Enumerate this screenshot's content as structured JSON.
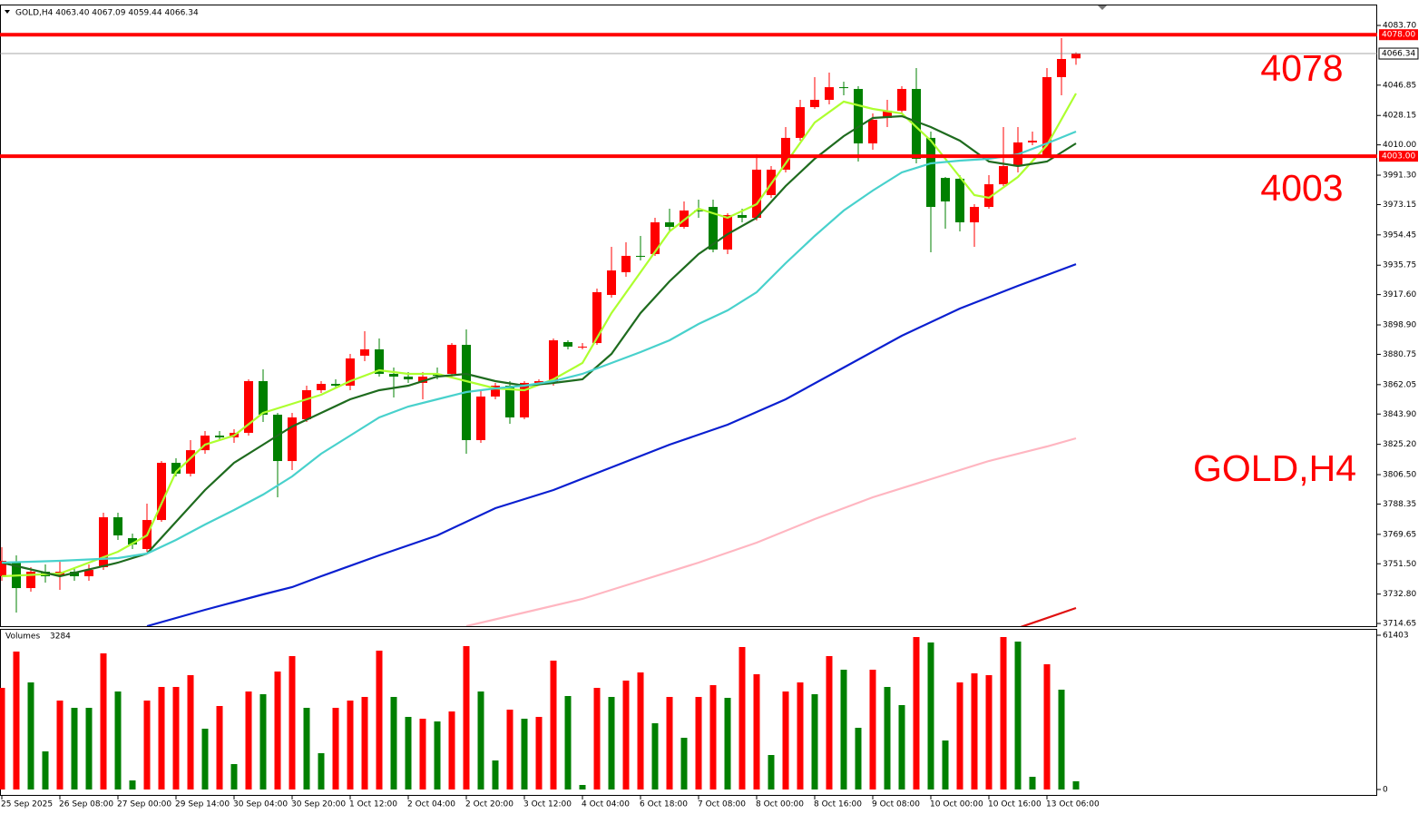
{
  "chart_data": {
    "type": "candlestick",
    "header": "GOLD,H4  4063.40 4067.09 4059.44 4066.34",
    "categories": [
      "25 Sep 2025",
      null,
      null,
      null,
      "26 Sep 08:00",
      null,
      null,
      null,
      "27 Sep 00:00",
      null,
      null,
      null,
      "29 Sep 14:00",
      null,
      null,
      null,
      "30 Sep 04:00",
      null,
      null,
      null,
      "30 Sep 20:00",
      null,
      null,
      null,
      "1 Oct 12:00",
      null,
      null,
      null,
      "2 Oct 04:00",
      null,
      null,
      null,
      "2 Oct 20:00",
      null,
      null,
      null,
      "3 Oct 12:00",
      null,
      null,
      null,
      "4 Oct 04:00",
      null,
      null,
      null,
      "6 Oct 18:00",
      null,
      null,
      null,
      "7 Oct 08:00",
      null,
      null,
      null,
      "8 Oct 00:00",
      null,
      null,
      null,
      "8 Oct 16:00",
      null,
      null,
      null,
      "9 Oct 08:00",
      null,
      null,
      null,
      "10 Oct 00:00",
      null,
      null,
      null,
      "10 Oct 16:00",
      null,
      null,
      null,
      "13 Oct 06:00",
      null,
      null
    ],
    "open": [
      3743.8,
      3752.2,
      3736.5,
      3746.6,
      3743.8,
      3746.6,
      3743.8,
      3749.4,
      3780.2,
      3767.3,
      3760.6,
      3778.5,
      3813.8,
      3807.1,
      3821.6,
      3830.6,
      3829.5,
      3832.3,
      3864.2,
      3843.5,
      3814.9,
      3840.7,
      3858.6,
      3862.5,
      3861.4,
      3879.9,
      3883.8,
      3868.7,
      3867.0,
      3863.1,
      3868.7,
      3868.7,
      3886.6,
      3827.8,
      3854.7,
      3861.4,
      3841.8,
      3863.1,
      3863.1,
      3888.3,
      3885.5,
      3887.7,
      3917.4,
      3931.4,
      3941.5,
      3942.6,
      3962.2,
      3959.4,
      3969.5,
      3971.7,
      3945.4,
      3966.7,
      3965.0,
      3979.0,
      3994.7,
      4014.3,
      4033.3,
      4037.8,
      4045.6,
      4044.5,
      4010.9,
      4026.6,
      4031.1,
      4044.5,
      4014.3,
      3989.6,
      3989.1,
      3962.2,
      3971.7,
      3985.7,
      3996.9,
      4011.5,
      4003.1,
      4051.8,
      4063.4
    ],
    "high": [
      3761.7,
      3756.7,
      3749.4,
      3751.1,
      3753.3,
      3749.4,
      3751.1,
      3783.0,
      3783.0,
      3770.1,
      3788.6,
      3814.9,
      3816.6,
      3827.8,
      3833.4,
      3833.4,
      3834.5,
      3865.3,
      3871.5,
      3844.6,
      3844.6,
      3861.4,
      3864.2,
      3865.3,
      3881.0,
      3895.0,
      3890.5,
      3872.6,
      3869.8,
      3869.8,
      3872.6,
      3887.7,
      3896.1,
      3858.6,
      3863.1,
      3864.2,
      3864.2,
      3865.3,
      3890.5,
      3889.4,
      3887.7,
      3921.3,
      3947.1,
      3949.9,
      3953.8,
      3965.0,
      3970.6,
      3975.1,
      3976.2,
      3976.2,
      3967.8,
      3970.6,
      4004.2,
      3996.9,
      4021.0,
      4037.8,
      4051.8,
      4054.6,
      4049.0,
      4046.2,
      4029.4,
      4037.8,
      4046.2,
      4057.4,
      4018.2,
      3990.2,
      3991.3,
      3973.4,
      3991.3,
      4021.0,
      4021.0,
      4018.2,
      4057.4,
      4075.9,
      4067.09
    ],
    "low": [
      3741.0,
      3721.4,
      3734.3,
      3739.9,
      3735.4,
      3741.0,
      3741.0,
      3747.7,
      3766.2,
      3760.6,
      3758.9,
      3777.4,
      3805.4,
      3805.4,
      3819.4,
      3827.8,
      3826.1,
      3830.6,
      3839.0,
      3792.5,
      3809.3,
      3839.0,
      3856.9,
      3859.7,
      3858.6,
      3876.5,
      3867.0,
      3854.1,
      3863.1,
      3853.0,
      3865.3,
      3867.0,
      3819.4,
      3826.1,
      3853.0,
      3837.9,
      3840.7,
      3861.4,
      3861.4,
      3883.8,
      3883.8,
      3886.6,
      3915.7,
      3928.6,
      3938.7,
      3941.5,
      3956.6,
      3958.3,
      3965.0,
      3943.7,
      3942.6,
      3962.2,
      3963.3,
      3977.3,
      3993.0,
      4012.6,
      4032.2,
      4035.0,
      4040.6,
      3999.7,
      4007.0,
      4021.0,
      4029.4,
      3998.6,
      3943.7,
      3958.3,
      3956.6,
      3947.1,
      3970.6,
      3984.6,
      3993.0,
      4009.8,
      4002.0,
      4040.6,
      4059.44
    ],
    "close": [
      3753.3,
      3736.5,
      3746.6,
      3743.8,
      3746.6,
      3743.8,
      3747.7,
      3780.2,
      3769.0,
      3763.4,
      3778.5,
      3813.8,
      3807.1,
      3821.6,
      3830.6,
      3829.5,
      3832.3,
      3864.2,
      3843.5,
      3814.9,
      3841.8,
      3858.6,
      3862.5,
      3861.4,
      3878.2,
      3883.8,
      3868.7,
      3867.0,
      3865.3,
      3867.0,
      3867.5,
      3886.6,
      3827.8,
      3854.7,
      3861.4,
      3841.8,
      3863.1,
      3864.2,
      3889.4,
      3885.5,
      3885.5,
      3919.1,
      3932.5,
      3941.5,
      3941.0,
      3962.2,
      3959.4,
      3969.5,
      3969.0,
      3945.4,
      3966.7,
      3965.0,
      3994.7,
      3994.7,
      4014.3,
      4033.3,
      4037.8,
      4045.6,
      4045.1,
      4010.9,
      4025.5,
      4031.1,
      4044.5,
      4001.4,
      3971.7,
      3975.1,
      3962.2,
      3971.7,
      3985.7,
      3996.9,
      4011.5,
      4012.6,
      4051.8,
      4063.0,
      4066.34
    ],
    "up_color": "#ff0000",
    "down_color": "#008000",
    "ylim": [
      3713,
      4096.6
    ],
    "yticks": [
      {
        "value": 4083.7,
        "label": "4083.70"
      },
      4046.85,
      4028.15,
      {
        "value": 4010,
        "label": "4010.00"
      },
      {
        "value": 3991.3,
        "label": "3991.30"
      },
      3973.15,
      3954.45,
      3935.75,
      {
        "value": 3917.6,
        "label": "3917.60"
      },
      {
        "value": 3898.9,
        "label": "3898.90"
      },
      3880.75,
      3862.05,
      {
        "value": 3843.9,
        "label": "3843.90"
      },
      {
        "value": 3825.2,
        "label": "3825.20"
      },
      {
        "value": 3806.5,
        "label": "3806.50"
      },
      3788.35,
      3769.65,
      {
        "value": 3751.5,
        "label": "3751.50"
      },
      {
        "value": 3732.8,
        "label": "3732.80"
      },
      3714.65
    ],
    "hlines": [
      {
        "value": 4078,
        "label": "4078.00"
      },
      {
        "value": 4003,
        "label": "4003.00"
      }
    ],
    "hline_color": "#ff0000",
    "moving_averages": [
      {
        "color": "#adff2f",
        "x": [
          0,
          4,
          8,
          10,
          12,
          14,
          16,
          18,
          20,
          22,
          24,
          26,
          28,
          30,
          32,
          34,
          36,
          38,
          40,
          42,
          44,
          46,
          48,
          50,
          52,
          54,
          56,
          58,
          60,
          62,
          64,
          66,
          67,
          68,
          70,
          72,
          74
        ],
        "values": [
          3743.8,
          3745.5,
          3758.9,
          3769.0,
          3808.2,
          3825.0,
          3830.6,
          3844.6,
          3850.2,
          3855.8,
          3864.2,
          3870.9,
          3868.7,
          3868.7,
          3864.2,
          3859.7,
          3858.6,
          3865.3,
          3875.4,
          3906.2,
          3931.4,
          3956.6,
          3970.6,
          3965.0,
          3973.4,
          3998.6,
          4023.8,
          4036.7,
          4032.2,
          4029.4,
          4012.6,
          3990.2,
          3979.0,
          3977.3,
          3990.2,
          4009.8,
          4041.7
        ]
      },
      {
        "color": "#1e6b1e",
        "x": [
          0,
          4,
          8,
          10,
          12,
          14,
          16,
          18,
          20,
          22,
          24,
          26,
          28,
          30,
          32,
          34,
          36,
          38,
          40,
          42,
          44,
          46,
          48,
          50,
          52,
          54,
          56,
          58,
          60,
          62,
          64,
          66,
          68,
          70,
          72,
          74
        ],
        "values": [
          3752.2,
          3743.8,
          3752.2,
          3757.8,
          3777.4,
          3797.0,
          3813.8,
          3825.0,
          3836.2,
          3844.6,
          3853.0,
          3858.6,
          3861.4,
          3867.0,
          3868.7,
          3864.2,
          3861.4,
          3863.1,
          3865.3,
          3881.0,
          3906.2,
          3925.8,
          3942.6,
          3954.9,
          3965.0,
          3984.6,
          4001.4,
          4015.4,
          4026.6,
          4027.7,
          4021.0,
          4012.6,
          3999.7,
          3996.9,
          3999.7,
          4010.9
        ]
      },
      {
        "color": "#48d1cc",
        "x": [
          0,
          4,
          8,
          10,
          12,
          14,
          16,
          18,
          20,
          22,
          24,
          26,
          28,
          30,
          32,
          34,
          36,
          38,
          40,
          42,
          44,
          46,
          48,
          50,
          52,
          54,
          56,
          58,
          60,
          62,
          64,
          66,
          68,
          70,
          72,
          74
        ],
        "values": [
          3752.2,
          3753.3,
          3755.0,
          3757.8,
          3766.2,
          3775.7,
          3784.7,
          3794.2,
          3805.4,
          3819.4,
          3830.6,
          3841.8,
          3848.5,
          3853.0,
          3857.5,
          3859.7,
          3861.4,
          3864.2,
          3868.7,
          3875.4,
          3882.1,
          3889.4,
          3899.5,
          3907.9,
          3919.1,
          3937.0,
          3953.8,
          3969.5,
          3981.8,
          3993.0,
          3998.6,
          4000.3,
          4001.4,
          4004.2,
          4010.9,
          4018.2
        ]
      },
      {
        "color": "#0a1fd0",
        "x": [
          10,
          14,
          18,
          20,
          22,
          26,
          30,
          34,
          38,
          42,
          46,
          50,
          54,
          58,
          62,
          66,
          70,
          74
        ],
        "values": [
          3713.0,
          3723.1,
          3732.6,
          3737.1,
          3743.8,
          3756.7,
          3769.0,
          3785.8,
          3797.0,
          3811.0,
          3825.0,
          3837.3,
          3853.0,
          3872.6,
          3892.2,
          3909.0,
          3923.0,
          3936.4
        ]
      },
      {
        "color": "#ffb6c1",
        "x": [
          32,
          36,
          40,
          44,
          48,
          52,
          56,
          60,
          64,
          68,
          72,
          74
        ],
        "values": [
          3713.0,
          3721.4,
          3729.8,
          3741.0,
          3752.2,
          3764.5,
          3779.1,
          3792.5,
          3803.7,
          3814.9,
          3823.9,
          3828.9
        ]
      },
      {
        "color": "#e01010",
        "x": [
          68,
          74
        ],
        "values": [
          3705.7,
          3724.2
        ]
      }
    ],
    "price_line_color": "#8a8a8a",
    "volume_title": "Volumes",
    "volumes": [
      40454,
      54902,
      42622,
      15170,
      35398,
      32508,
      32508,
      54180,
      39010,
      3612,
      35398,
      40816,
      40816,
      45512,
      24200,
      33230,
      10114,
      39010,
      37926,
      46956,
      53096,
      32508,
      14448,
      32508,
      35398,
      36842,
      55264,
      36842,
      28896,
      28174,
      27090,
      31063,
      57070,
      39010,
      11558,
      31786,
      28174,
      28896,
      51290,
      37204,
      1806,
      40454,
      36842,
      43344,
      46595,
      26368,
      36842,
      20588,
      36842,
      41538,
      36481,
      56708,
      45872,
      13726,
      39010,
      42622,
      37926,
      53096,
      47678,
      24562,
      47678,
      40816,
      33592,
      60682,
      58514,
      19505,
      42622,
      46234,
      45512,
      60682,
      58876,
      5057,
      49846,
      39732,
      3284
    ],
    "volume_colors": [
      "#ff0000",
      "#ff0000",
      "#008000",
      "#008000",
      "#ff0000",
      "#008000",
      "#008000",
      "#ff0000",
      "#008000",
      "#008000",
      "#ff0000",
      "#ff0000",
      "#ff0000",
      "#ff0000",
      "#008000",
      "#ff0000",
      "#008000",
      "#ff0000",
      "#008000",
      "#ff0000",
      "#ff0000",
      "#008000",
      "#008000",
      "#ff0000",
      "#ff0000",
      "#ff0000",
      "#ff0000",
      "#008000",
      "#008000",
      "#ff0000",
      "#008000",
      "#ff0000",
      "#ff0000",
      "#008000",
      "#008000",
      "#ff0000",
      "#008000",
      "#ff0000",
      "#ff0000",
      "#008000",
      "#008000",
      "#ff0000",
      "#008000",
      "#ff0000",
      "#ff0000",
      "#008000",
      "#ff0000",
      "#008000",
      "#ff0000",
      "#ff0000",
      "#008000",
      "#ff0000",
      "#ff0000",
      "#008000",
      "#ff0000",
      "#ff0000",
      "#008000",
      "#ff0000",
      "#008000",
      "#008000",
      "#ff0000",
      "#008000",
      "#008000",
      "#ff0000",
      "#008000",
      "#008000",
      "#ff0000",
      "#ff0000",
      "#ff0000",
      "#ff0000",
      "#008000",
      "#008000",
      "#ff0000",
      "#008000",
      "#008000"
    ],
    "volume_ylim": [
      0,
      61403
    ],
    "volume_yticks": [
      61403,
      0
    ],
    "annotations": [
      "4078",
      "4003",
      "GOLD,H4"
    ]
  }
}
